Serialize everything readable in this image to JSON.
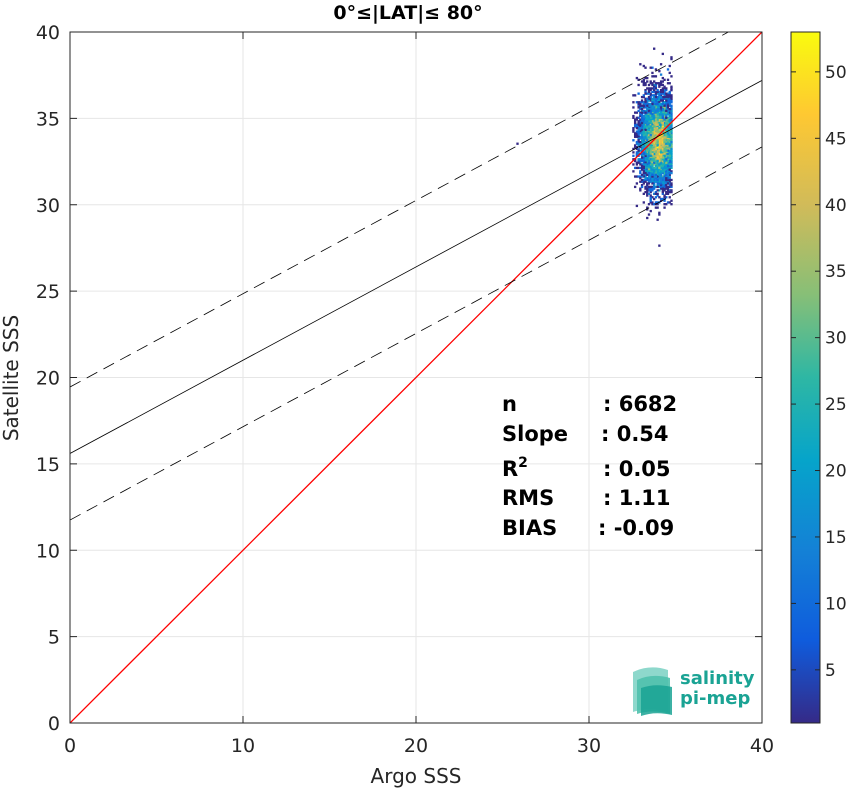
{
  "chart_data": {
    "type": "scatter",
    "title": "0°≤|LAT|≤ 80°",
    "xlabel": "Argo SSS",
    "ylabel": "Satellite SSS",
    "xlim": [
      0,
      40
    ],
    "ylim": [
      0,
      40
    ],
    "xticks": [
      "0",
      "10",
      "20",
      "30",
      "40"
    ],
    "yticks": [
      "0",
      "5",
      "10",
      "15",
      "20",
      "25",
      "30",
      "35",
      "40"
    ],
    "grid": true,
    "colorbar": {
      "min": 1,
      "max": 53,
      "ticks": [
        "5",
        "10",
        "15",
        "20",
        "25",
        "30",
        "35",
        "40",
        "45",
        "50"
      ],
      "colormap": "parula"
    },
    "reference_line": {
      "name": "1:1",
      "color": "#ff0000",
      "points": [
        [
          0,
          0
        ],
        [
          40,
          40
        ]
      ]
    },
    "fit_line": {
      "intercept": 15.6,
      "slope": 0.54,
      "color": "#000000"
    },
    "fit_bounds": {
      "offset": 3.85,
      "style": "dashed"
    },
    "density": {
      "x_center": 34.0,
      "y_center": 33.7,
      "x_spread": 0.55,
      "y_spread": 1.3,
      "x_range": [
        32.5,
        34.8
      ],
      "y_range": [
        27.6,
        39.0
      ],
      "peak_count": 53
    },
    "stats": [
      {
        "label": "n",
        "value": ": 6682"
      },
      {
        "label": "Slope",
        "value": ": 0.54"
      },
      {
        "label": "R",
        "sup": "2",
        "value": ": 0.05"
      },
      {
        "label": "RMS",
        "value": ": 1.11"
      },
      {
        "label": "BIAS",
        "value": ": -0.09"
      }
    ]
  },
  "logo": {
    "line1": "salinity",
    "line2": "pi-mep",
    "color": "#1aa394"
  }
}
